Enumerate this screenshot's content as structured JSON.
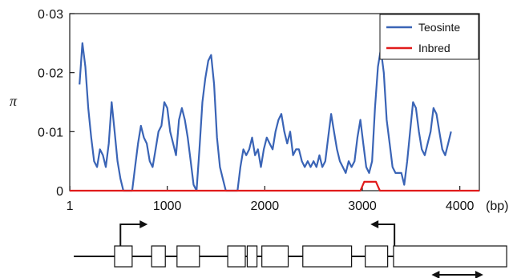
{
  "chart_data": {
    "type": "line",
    "ylabel": "π",
    "xlabel": "",
    "x_unit": "(bp)",
    "xlim": [
      0,
      4200
    ],
    "ylim": [
      0,
      0.03
    ],
    "x_ticks": [
      1,
      1000,
      2000,
      3000,
      4000
    ],
    "x_tick_labels": [
      "1",
      "1000",
      "2000",
      "3000",
      "4000"
    ],
    "y_ticks": [
      0,
      0.01,
      0.02,
      0.03
    ],
    "y_tick_labels": [
      "0",
      "0·01",
      "0·02",
      "0·03"
    ],
    "grid": false,
    "legend_position": "top-right",
    "series": [
      {
        "name": "Teosinte",
        "color": "#3a64b6",
        "x": [
          100,
          130,
          160,
          190,
          220,
          250,
          280,
          310,
          340,
          370,
          400,
          430,
          460,
          490,
          520,
          550,
          580,
          610,
          640,
          670,
          700,
          730,
          760,
          790,
          820,
          850,
          880,
          910,
          940,
          970,
          1000,
          1030,
          1060,
          1090,
          1120,
          1150,
          1180,
          1210,
          1240,
          1270,
          1300,
          1330,
          1360,
          1390,
          1420,
          1450,
          1480,
          1510,
          1540,
          1570,
          1600,
          1630,
          1660,
          1690,
          1720,
          1750,
          1780,
          1810,
          1840,
          1870,
          1900,
          1930,
          1960,
          1990,
          2020,
          2050,
          2080,
          2110,
          2140,
          2170,
          2200,
          2230,
          2260,
          2290,
          2320,
          2350,
          2380,
          2410,
          2440,
          2470,
          2500,
          2530,
          2560,
          2590,
          2620,
          2650,
          2680,
          2710,
          2740,
          2770,
          2800,
          2830,
          2860,
          2890,
          2920,
          2950,
          2980,
          3010,
          3040,
          3070,
          3100,
          3130,
          3160,
          3190,
          3220,
          3250,
          3280,
          3310,
          3340,
          3370,
          3400,
          3430,
          3460,
          3490,
          3520,
          3550,
          3580,
          3610,
          3640,
          3670,
          3700,
          3730,
          3760,
          3790,
          3820,
          3850,
          3880,
          3910
        ],
        "values": [
          0.018,
          0.025,
          0.021,
          0.014,
          0.009,
          0.005,
          0.004,
          0.007,
          0.006,
          0.004,
          0.008,
          0.015,
          0.01,
          0.005,
          0.002,
          0.0,
          0.0,
          0.0,
          0.0,
          0.004,
          0.008,
          0.011,
          0.009,
          0.008,
          0.005,
          0.004,
          0.007,
          0.01,
          0.011,
          0.015,
          0.014,
          0.01,
          0.008,
          0.006,
          0.012,
          0.014,
          0.012,
          0.009,
          0.005,
          0.001,
          0.0,
          0.007,
          0.015,
          0.019,
          0.022,
          0.023,
          0.018,
          0.009,
          0.004,
          0.002,
          0.0,
          0.0,
          0.0,
          0.0,
          0.0,
          0.004,
          0.007,
          0.006,
          0.007,
          0.009,
          0.006,
          0.007,
          0.004,
          0.007,
          0.009,
          0.008,
          0.007,
          0.01,
          0.012,
          0.013,
          0.01,
          0.008,
          0.01,
          0.006,
          0.007,
          0.007,
          0.005,
          0.004,
          0.005,
          0.004,
          0.005,
          0.004,
          0.006,
          0.004,
          0.005,
          0.009,
          0.013,
          0.01,
          0.007,
          0.005,
          0.004,
          0.003,
          0.005,
          0.004,
          0.005,
          0.009,
          0.012,
          0.008,
          0.004,
          0.003,
          0.005,
          0.014,
          0.021,
          0.024,
          0.02,
          0.012,
          0.008,
          0.004,
          0.003,
          0.003,
          0.003,
          0.001,
          0.005,
          0.01,
          0.015,
          0.014,
          0.01,
          0.007,
          0.006,
          0.008,
          0.01,
          0.014,
          0.013,
          0.01,
          0.007,
          0.006,
          0.008,
          0.01
        ]
      },
      {
        "name": "Inbred",
        "color": "#e11b1b",
        "x": [
          0,
          2980,
          3020,
          3140,
          3180,
          4200
        ],
        "values": [
          0,
          0,
          0.0015,
          0.0015,
          0,
          0
        ]
      }
    ]
  },
  "gene_model": {
    "line_color": "#111111",
    "exons_bp": [
      [
        460,
        640
      ],
      [
        840,
        980
      ],
      [
        1100,
        1330
      ],
      [
        1620,
        1800
      ],
      [
        1820,
        1920
      ],
      [
        1970,
        2240
      ],
      [
        2390,
        2890
      ],
      [
        3030,
        3260
      ],
      [
        3320,
        4480
      ]
    ],
    "forward_arrow_bp": 520,
    "reverse_arrow_bp": 3330,
    "double_arrow_bp": [
      3710,
      4240
    ]
  }
}
